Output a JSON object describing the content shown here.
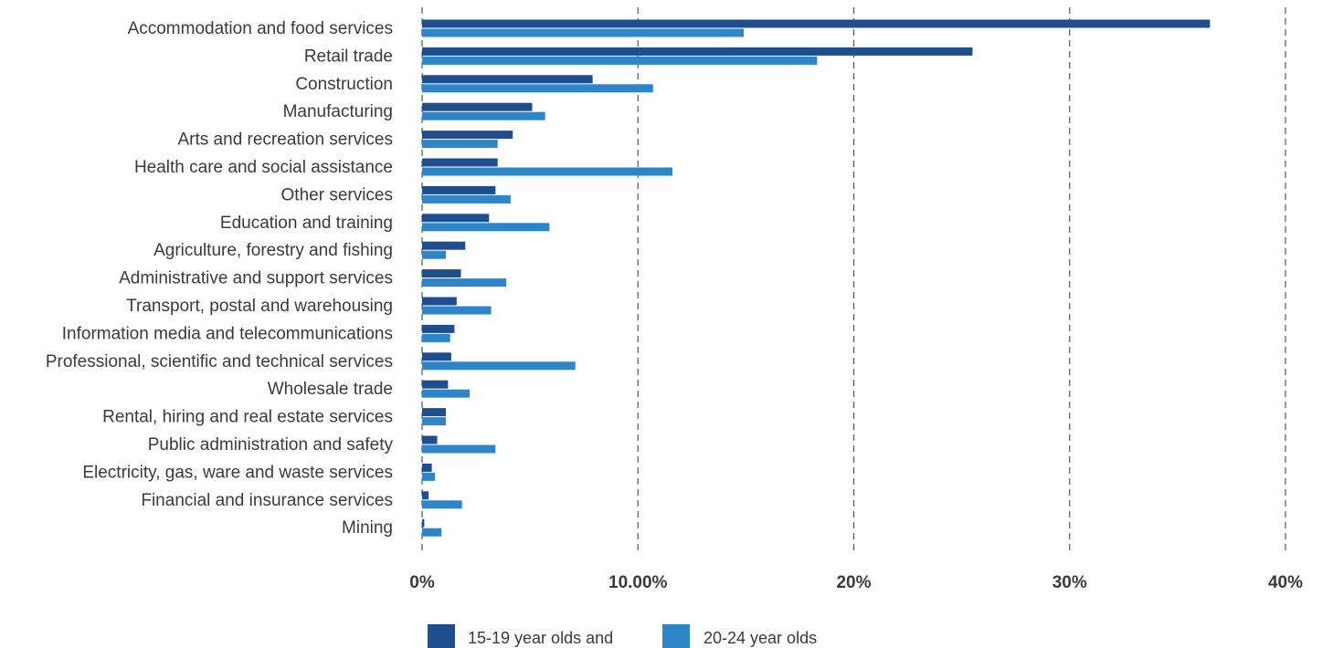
{
  "chart_data": {
    "type": "bar",
    "orientation": "horizontal",
    "categories": [
      "Accommodation and food services",
      "Retail trade",
      "Construction",
      "Manufacturing",
      "Arts and recreation services",
      "Health care and social assistance",
      "Other services",
      "Education and training",
      "Agriculture, forestry and fishing",
      "Administrative and support services",
      "Transport, postal and warehousing",
      "Information media and telecommunications",
      "Professional, scientific and technical services",
      "Wholesale trade",
      "Rental, hiring and real estate services",
      "Public administration and safety",
      "Electricity, gas, ware and waste services",
      "Financial and insurance services",
      "Mining"
    ],
    "series": [
      {
        "name": "15-19 year olds and",
        "color": "#1f4e8c",
        "values": [
          36.5,
          25.5,
          7.9,
          5.1,
          4.2,
          3.5,
          3.4,
          3.1,
          2.0,
          1.8,
          1.6,
          1.5,
          1.35,
          1.2,
          1.1,
          0.7,
          0.45,
          0.3,
          0.1
        ]
      },
      {
        "name": "20-24 year olds",
        "color": "#2e86c8",
        "values": [
          14.9,
          18.3,
          10.7,
          5.7,
          3.5,
          11.6,
          4.1,
          5.9,
          1.1,
          3.9,
          3.2,
          1.3,
          7.1,
          2.2,
          1.1,
          3.4,
          0.6,
          1.85,
          0.9
        ]
      }
    ],
    "x_ticks": [
      {
        "value": 0,
        "label": "0%"
      },
      {
        "value": 10,
        "label": "10.00%"
      },
      {
        "value": 20,
        "label": "20%"
      },
      {
        "value": 30,
        "label": "30%"
      },
      {
        "value": 40,
        "label": "40%"
      }
    ],
    "xlim": [
      0,
      40
    ],
    "grid": "vertical dashed",
    "legend_position": "bottom-center"
  }
}
